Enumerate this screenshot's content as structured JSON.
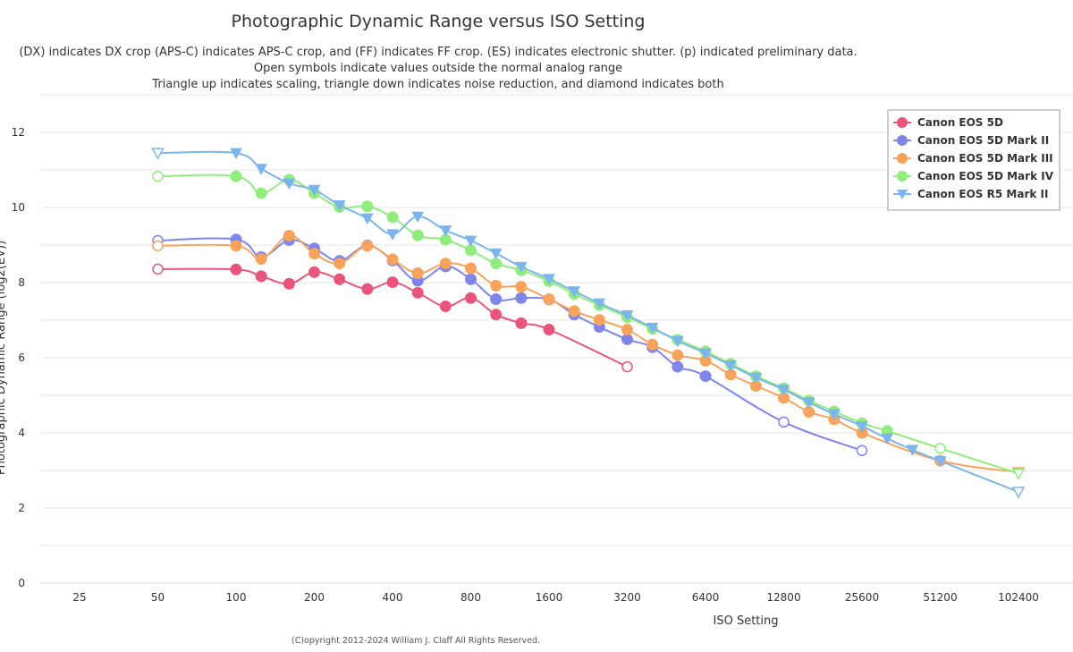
{
  "chart_data": {
    "type": "line",
    "title": "Photographic Dynamic Range versus ISO Setting",
    "subtitle_lines": [
      "(DX) indicates DX crop (APS-C) indicates APS-C crop, and (FF) indicates FF crop. (ES) indicates electronic shutter. (p) indicated preliminary data.",
      "Open symbols indicate values outside the normal analog range",
      "Triangle up indicates scaling, triangle down indicates noise reduction, and diamond indicates both"
    ],
    "xlabel": "ISO Setting",
    "ylabel": "Photographic Dynamic Range (log2(EV))",
    "x_scale": "log2",
    "x_ticks": [
      25,
      50,
      100,
      200,
      400,
      800,
      1600,
      3200,
      6400,
      12800,
      25600,
      51200,
      102400
    ],
    "ylim": [
      0,
      12
    ],
    "y_ticks": [
      0,
      2,
      4,
      6,
      8,
      10,
      12
    ],
    "grid": true,
    "legend_position": "top-right",
    "credit": "(C)opyright 2012-2024 William J. Claff All Rights Reserved.",
    "series": [
      {
        "name": "Canon EOS 5D",
        "color": "#e8547a",
        "points": [
          {
            "x": 50,
            "y": 8.36,
            "m": "open-circle"
          },
          {
            "x": 100,
            "y": 8.35,
            "m": "circle"
          },
          {
            "x": 125,
            "y": 8.17,
            "m": "circle"
          },
          {
            "x": 160,
            "y": 7.97,
            "m": "circle"
          },
          {
            "x": 200,
            "y": 8.28,
            "m": "circle"
          },
          {
            "x": 250,
            "y": 8.09,
            "m": "circle"
          },
          {
            "x": 320,
            "y": 7.83,
            "m": "circle"
          },
          {
            "x": 400,
            "y": 8.01,
            "m": "circle"
          },
          {
            "x": 500,
            "y": 7.73,
            "m": "circle"
          },
          {
            "x": 640,
            "y": 7.37,
            "m": "circle"
          },
          {
            "x": 800,
            "y": 7.59,
            "m": "circle"
          },
          {
            "x": 1000,
            "y": 7.15,
            "m": "circle"
          },
          {
            "x": 1250,
            "y": 6.92,
            "m": "circle"
          },
          {
            "x": 1600,
            "y": 6.75,
            "m": "circle"
          },
          {
            "x": 3200,
            "y": 5.76,
            "m": "open-circle"
          }
        ]
      },
      {
        "name": "Canon EOS 5D Mark II",
        "color": "#8085e9",
        "points": [
          {
            "x": 50,
            "y": 9.12,
            "m": "open-circle"
          },
          {
            "x": 100,
            "y": 9.15,
            "m": "circle"
          },
          {
            "x": 125,
            "y": 8.68,
            "m": "circle"
          },
          {
            "x": 160,
            "y": 9.13,
            "m": "circle"
          },
          {
            "x": 200,
            "y": 8.91,
            "m": "circle"
          },
          {
            "x": 250,
            "y": 8.58,
            "m": "circle"
          },
          {
            "x": 320,
            "y": 8.99,
            "m": "circle"
          },
          {
            "x": 400,
            "y": 8.59,
            "m": "circle"
          },
          {
            "x": 500,
            "y": 8.05,
            "m": "circle"
          },
          {
            "x": 640,
            "y": 8.43,
            "m": "circle"
          },
          {
            "x": 800,
            "y": 8.09,
            "m": "circle"
          },
          {
            "x": 1000,
            "y": 7.56,
            "m": "circle"
          },
          {
            "x": 1250,
            "y": 7.59,
            "m": "circle"
          },
          {
            "x": 1600,
            "y": 7.55,
            "m": "circle"
          },
          {
            "x": 2000,
            "y": 7.15,
            "m": "circle"
          },
          {
            "x": 2500,
            "y": 6.82,
            "m": "circle"
          },
          {
            "x": 3200,
            "y": 6.49,
            "m": "circle"
          },
          {
            "x": 4000,
            "y": 6.28,
            "m": "circle"
          },
          {
            "x": 5000,
            "y": 5.76,
            "m": "circle"
          },
          {
            "x": 6400,
            "y": 5.51,
            "m": "circle"
          },
          {
            "x": 12800,
            "y": 4.29,
            "m": "open-circle"
          },
          {
            "x": 25600,
            "y": 3.53,
            "m": "open-circle"
          }
        ]
      },
      {
        "name": "Canon EOS 5D Mark III",
        "color": "#f7a35c",
        "points": [
          {
            "x": 50,
            "y": 8.98,
            "m": "open-circle"
          },
          {
            "x": 100,
            "y": 8.98,
            "m": "circle"
          },
          {
            "x": 125,
            "y": 8.63,
            "m": "circle"
          },
          {
            "x": 160,
            "y": 9.25,
            "m": "circle"
          },
          {
            "x": 200,
            "y": 8.77,
            "m": "circle"
          },
          {
            "x": 250,
            "y": 8.51,
            "m": "circle"
          },
          {
            "x": 320,
            "y": 8.98,
            "m": "circle"
          },
          {
            "x": 400,
            "y": 8.62,
            "m": "circle"
          },
          {
            "x": 500,
            "y": 8.25,
            "m": "circle"
          },
          {
            "x": 640,
            "y": 8.51,
            "m": "circle"
          },
          {
            "x": 800,
            "y": 8.38,
            "m": "circle"
          },
          {
            "x": 1000,
            "y": 7.92,
            "m": "circle"
          },
          {
            "x": 1250,
            "y": 7.89,
            "m": "circle"
          },
          {
            "x": 1600,
            "y": 7.56,
            "m": "circle"
          },
          {
            "x": 2000,
            "y": 7.24,
            "m": "circle"
          },
          {
            "x": 2500,
            "y": 7.01,
            "m": "circle"
          },
          {
            "x": 3200,
            "y": 6.75,
            "m": "circle"
          },
          {
            "x": 4000,
            "y": 6.35,
            "m": "circle"
          },
          {
            "x": 5000,
            "y": 6.07,
            "m": "circle"
          },
          {
            "x": 6400,
            "y": 5.92,
            "m": "circle"
          },
          {
            "x": 8000,
            "y": 5.55,
            "m": "circle"
          },
          {
            "x": 10000,
            "y": 5.25,
            "m": "circle"
          },
          {
            "x": 12800,
            "y": 4.93,
            "m": "circle"
          },
          {
            "x": 16000,
            "y": 4.56,
            "m": "circle"
          },
          {
            "x": 20000,
            "y": 4.36,
            "m": "circle"
          },
          {
            "x": 25600,
            "y": 4.0,
            "m": "circle"
          },
          {
            "x": 51200,
            "y": 3.26,
            "m": "circle"
          },
          {
            "x": 102400,
            "y": 2.95,
            "m": "open-triangle-down"
          }
        ]
      },
      {
        "name": "Canon EOS 5D Mark IV",
        "color": "#90ed7d",
        "points": [
          {
            "x": 50,
            "y": 10.83,
            "m": "open-circle"
          },
          {
            "x": 100,
            "y": 10.83,
            "m": "circle"
          },
          {
            "x": 125,
            "y": 10.38,
            "m": "circle"
          },
          {
            "x": 160,
            "y": 10.74,
            "m": "circle"
          },
          {
            "x": 200,
            "y": 10.38,
            "m": "circle"
          },
          {
            "x": 250,
            "y": 10.01,
            "m": "circle"
          },
          {
            "x": 320,
            "y": 10.03,
            "m": "circle"
          },
          {
            "x": 400,
            "y": 9.74,
            "m": "circle"
          },
          {
            "x": 500,
            "y": 9.26,
            "m": "circle"
          },
          {
            "x": 640,
            "y": 9.14,
            "m": "circle"
          },
          {
            "x": 800,
            "y": 8.86,
            "m": "circle"
          },
          {
            "x": 1000,
            "y": 8.51,
            "m": "circle"
          },
          {
            "x": 1250,
            "y": 8.33,
            "m": "circle"
          },
          {
            "x": 1600,
            "y": 8.04,
            "m": "circle"
          },
          {
            "x": 2000,
            "y": 7.7,
            "m": "circle"
          },
          {
            "x": 2500,
            "y": 7.4,
            "m": "circle"
          },
          {
            "x": 3200,
            "y": 7.08,
            "m": "circle"
          },
          {
            "x": 4000,
            "y": 6.77,
            "m": "circle"
          },
          {
            "x": 5000,
            "y": 6.48,
            "m": "circle"
          },
          {
            "x": 6400,
            "y": 6.17,
            "m": "circle"
          },
          {
            "x": 8000,
            "y": 5.84,
            "m": "circle"
          },
          {
            "x": 10000,
            "y": 5.51,
            "m": "circle"
          },
          {
            "x": 12800,
            "y": 5.19,
            "m": "circle"
          },
          {
            "x": 16000,
            "y": 4.86,
            "m": "circle"
          },
          {
            "x": 20000,
            "y": 4.57,
            "m": "circle"
          },
          {
            "x": 25600,
            "y": 4.26,
            "m": "circle"
          },
          {
            "x": 32000,
            "y": 4.05,
            "m": "circle"
          },
          {
            "x": 51200,
            "y": 3.59,
            "m": "open-circle"
          },
          {
            "x": 102400,
            "y": 2.92,
            "m": "open-triangle-down"
          }
        ]
      },
      {
        "name": "Canon EOS R5 Mark II",
        "color": "#7cb5ec",
        "points": [
          {
            "x": 50,
            "y": 11.45,
            "m": "open-triangle-down"
          },
          {
            "x": 100,
            "y": 11.45,
            "m": "triangle-down"
          },
          {
            "x": 125,
            "y": 11.03,
            "m": "triangle-down"
          },
          {
            "x": 160,
            "y": 10.64,
            "m": "triangle-down"
          },
          {
            "x": 200,
            "y": 10.47,
            "m": "triangle-down"
          },
          {
            "x": 250,
            "y": 10.06,
            "m": "triangle-down"
          },
          {
            "x": 320,
            "y": 9.71,
            "m": "triangle-down"
          },
          {
            "x": 400,
            "y": 9.29,
            "m": "triangle-down"
          },
          {
            "x": 500,
            "y": 9.76,
            "m": "triangle-down"
          },
          {
            "x": 640,
            "y": 9.39,
            "m": "triangle-down"
          },
          {
            "x": 800,
            "y": 9.12,
            "m": "triangle-down"
          },
          {
            "x": 1000,
            "y": 8.78,
            "m": "triangle-down"
          },
          {
            "x": 1250,
            "y": 8.42,
            "m": "triangle-down"
          },
          {
            "x": 1600,
            "y": 8.1,
            "m": "triangle-down"
          },
          {
            "x": 2000,
            "y": 7.77,
            "m": "triangle-down"
          },
          {
            "x": 2500,
            "y": 7.45,
            "m": "triangle-down"
          },
          {
            "x": 3200,
            "y": 7.13,
            "m": "triangle-down"
          },
          {
            "x": 4000,
            "y": 6.8,
            "m": "triangle-down"
          },
          {
            "x": 5000,
            "y": 6.45,
            "m": "triangle-down"
          },
          {
            "x": 6400,
            "y": 6.12,
            "m": "triangle-down"
          },
          {
            "x": 8000,
            "y": 5.8,
            "m": "triangle-down"
          },
          {
            "x": 10000,
            "y": 5.47,
            "m": "triangle-down"
          },
          {
            "x": 12800,
            "y": 5.15,
            "m": "triangle-down"
          },
          {
            "x": 16000,
            "y": 4.81,
            "m": "triangle-down"
          },
          {
            "x": 20000,
            "y": 4.5,
            "m": "triangle-down"
          },
          {
            "x": 25600,
            "y": 4.18,
            "m": "triangle-down"
          },
          {
            "x": 32000,
            "y": 3.85,
            "m": "triangle-down"
          },
          {
            "x": 40000,
            "y": 3.55,
            "m": "triangle-down"
          },
          {
            "x": 51200,
            "y": 3.25,
            "m": "triangle-down"
          },
          {
            "x": 102400,
            "y": 2.43,
            "m": "open-triangle-down"
          }
        ]
      }
    ]
  }
}
